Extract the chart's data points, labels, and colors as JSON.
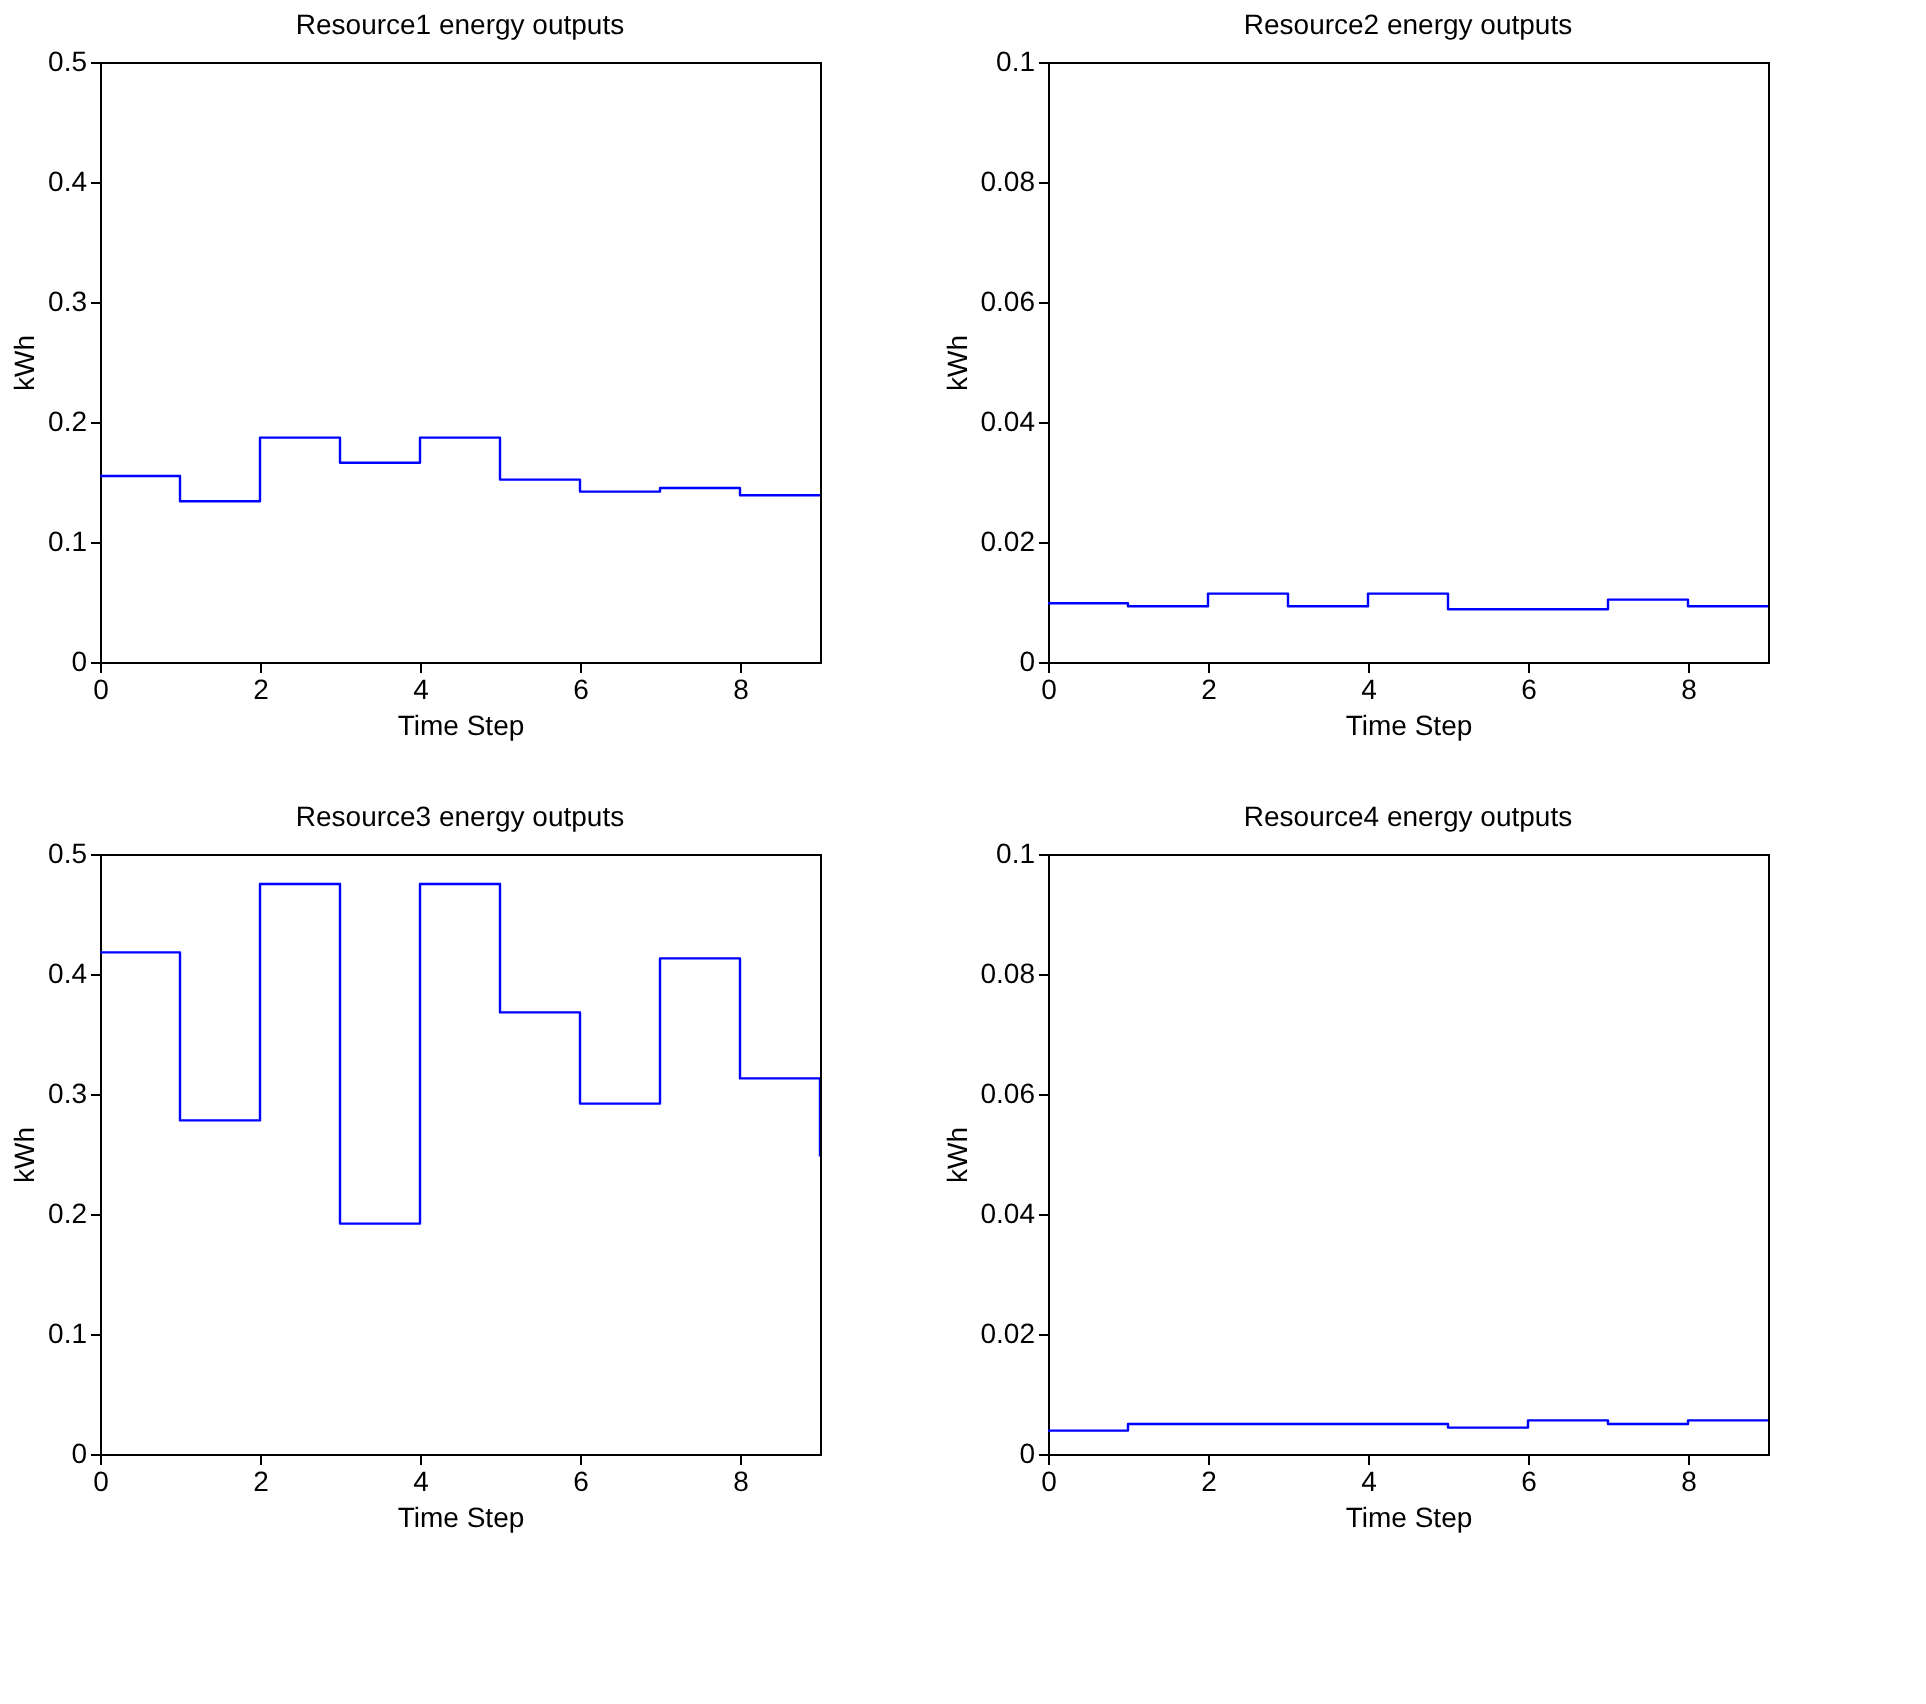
{
  "chart_data": [
    {
      "type": "step",
      "title": "Resource1 energy outputs",
      "xlabel": "Time Step",
      "ylabel": "kWh",
      "x": [
        0,
        1,
        2,
        3,
        4,
        5,
        6,
        7,
        8,
        9
      ],
      "xlim": [
        0,
        9
      ],
      "xticks": [
        0,
        2,
        4,
        6,
        8
      ],
      "ylim": [
        0,
        0.5
      ],
      "yticks": [
        0,
        0.1,
        0.2,
        0.3,
        0.4,
        0.5
      ],
      "grid": false,
      "series": [
        {
          "color": "#0000ff",
          "values": [
            0.155,
            0.134,
            0.187,
            0.166,
            0.187,
            0.152,
            0.142,
            0.145,
            0.139,
            0.139
          ]
        }
      ]
    },
    {
      "type": "step",
      "title": "Resource2 energy outputs",
      "xlabel": "Time Step",
      "ylabel": "kWh",
      "x": [
        0,
        1,
        2,
        3,
        4,
        5,
        6,
        7,
        8,
        9
      ],
      "xlim": [
        0,
        9
      ],
      "xticks": [
        0,
        2,
        4,
        6,
        8
      ],
      "ylim": [
        0,
        0.1
      ],
      "yticks": [
        0,
        0.02,
        0.04,
        0.06,
        0.08,
        0.1
      ],
      "grid": false,
      "series": [
        {
          "color": "#0000ff",
          "values": [
            0.0098,
            0.0093,
            0.0114,
            0.0093,
            0.0114,
            0.0088,
            0.0088,
            0.0104,
            0.0093,
            0.0093
          ]
        }
      ]
    },
    {
      "type": "step",
      "title": "Resource3 energy outputs",
      "xlabel": "Time Step",
      "ylabel": "kWh",
      "x": [
        0,
        1,
        2,
        3,
        4,
        5,
        6,
        7,
        8,
        9
      ],
      "xlim": [
        0,
        9
      ],
      "xticks": [
        0,
        2,
        4,
        6,
        8
      ],
      "ylim": [
        0,
        0.5
      ],
      "yticks": [
        0,
        0.1,
        0.2,
        0.3,
        0.4,
        0.5
      ],
      "grid": false,
      "series": [
        {
          "color": "#0000ff",
          "values": [
            0.418,
            0.278,
            0.475,
            0.192,
            0.475,
            0.368,
            0.292,
            0.413,
            0.313,
            0.248
          ]
        }
      ]
    },
    {
      "type": "step",
      "title": "Resource4 energy outputs",
      "xlabel": "Time Step",
      "ylabel": "kWh",
      "x": [
        0,
        1,
        2,
        3,
        4,
        5,
        6,
        7,
        8,
        9
      ],
      "xlim": [
        0,
        9
      ],
      "xticks": [
        0,
        2,
        4,
        6,
        8
      ],
      "ylim": [
        0,
        0.1
      ],
      "yticks": [
        0,
        0.02,
        0.04,
        0.06,
        0.08,
        0.1
      ],
      "grid": false,
      "series": [
        {
          "color": "#0000ff",
          "values": [
            0.0039,
            0.005,
            0.005,
            0.005,
            0.005,
            0.0044,
            0.0056,
            0.005,
            0.0056,
            0.0056
          ]
        }
      ]
    }
  ]
}
